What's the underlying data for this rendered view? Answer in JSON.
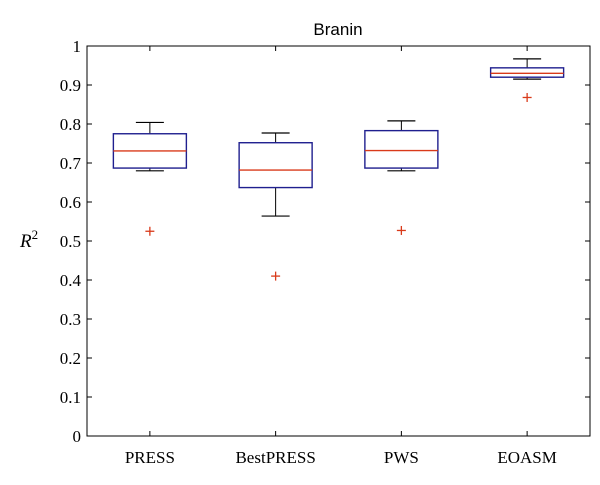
{
  "chart_data": {
    "type": "box",
    "title": "Branin",
    "ylabel": "R",
    "ylabel_superscript": "2",
    "ylim": [
      0,
      1
    ],
    "yticks": [
      "0",
      "0.1",
      "0.2",
      "0.3",
      "0.4",
      "0.5",
      "0.6",
      "0.7",
      "0.8",
      "0.9",
      "1"
    ],
    "categories": [
      "PRESS",
      "BestPRESS",
      "PWS",
      "EOASM"
    ],
    "boxes": [
      {
        "whisker_low": 0.68,
        "q1": 0.687,
        "median": 0.731,
        "q3": 0.775,
        "whisker_high": 0.804,
        "outliers": [
          0.525
        ]
      },
      {
        "whisker_low": 0.564,
        "q1": 0.637,
        "median": 0.682,
        "q3": 0.752,
        "whisker_high": 0.777,
        "outliers": [
          0.41
        ]
      },
      {
        "whisker_low": 0.68,
        "q1": 0.687,
        "median": 0.732,
        "q3": 0.783,
        "whisker_high": 0.808,
        "outliers": [
          0.527
        ]
      },
      {
        "whisker_low": 0.915,
        "q1": 0.92,
        "median": 0.93,
        "q3": 0.944,
        "whisker_high": 0.967,
        "outliers": [
          0.868
        ]
      }
    ],
    "colors": {
      "box": "#1f1f8f",
      "median": "#d93a1a",
      "whisker": "#000000",
      "outlier": "#d93a1a",
      "axes": "#000000"
    }
  }
}
